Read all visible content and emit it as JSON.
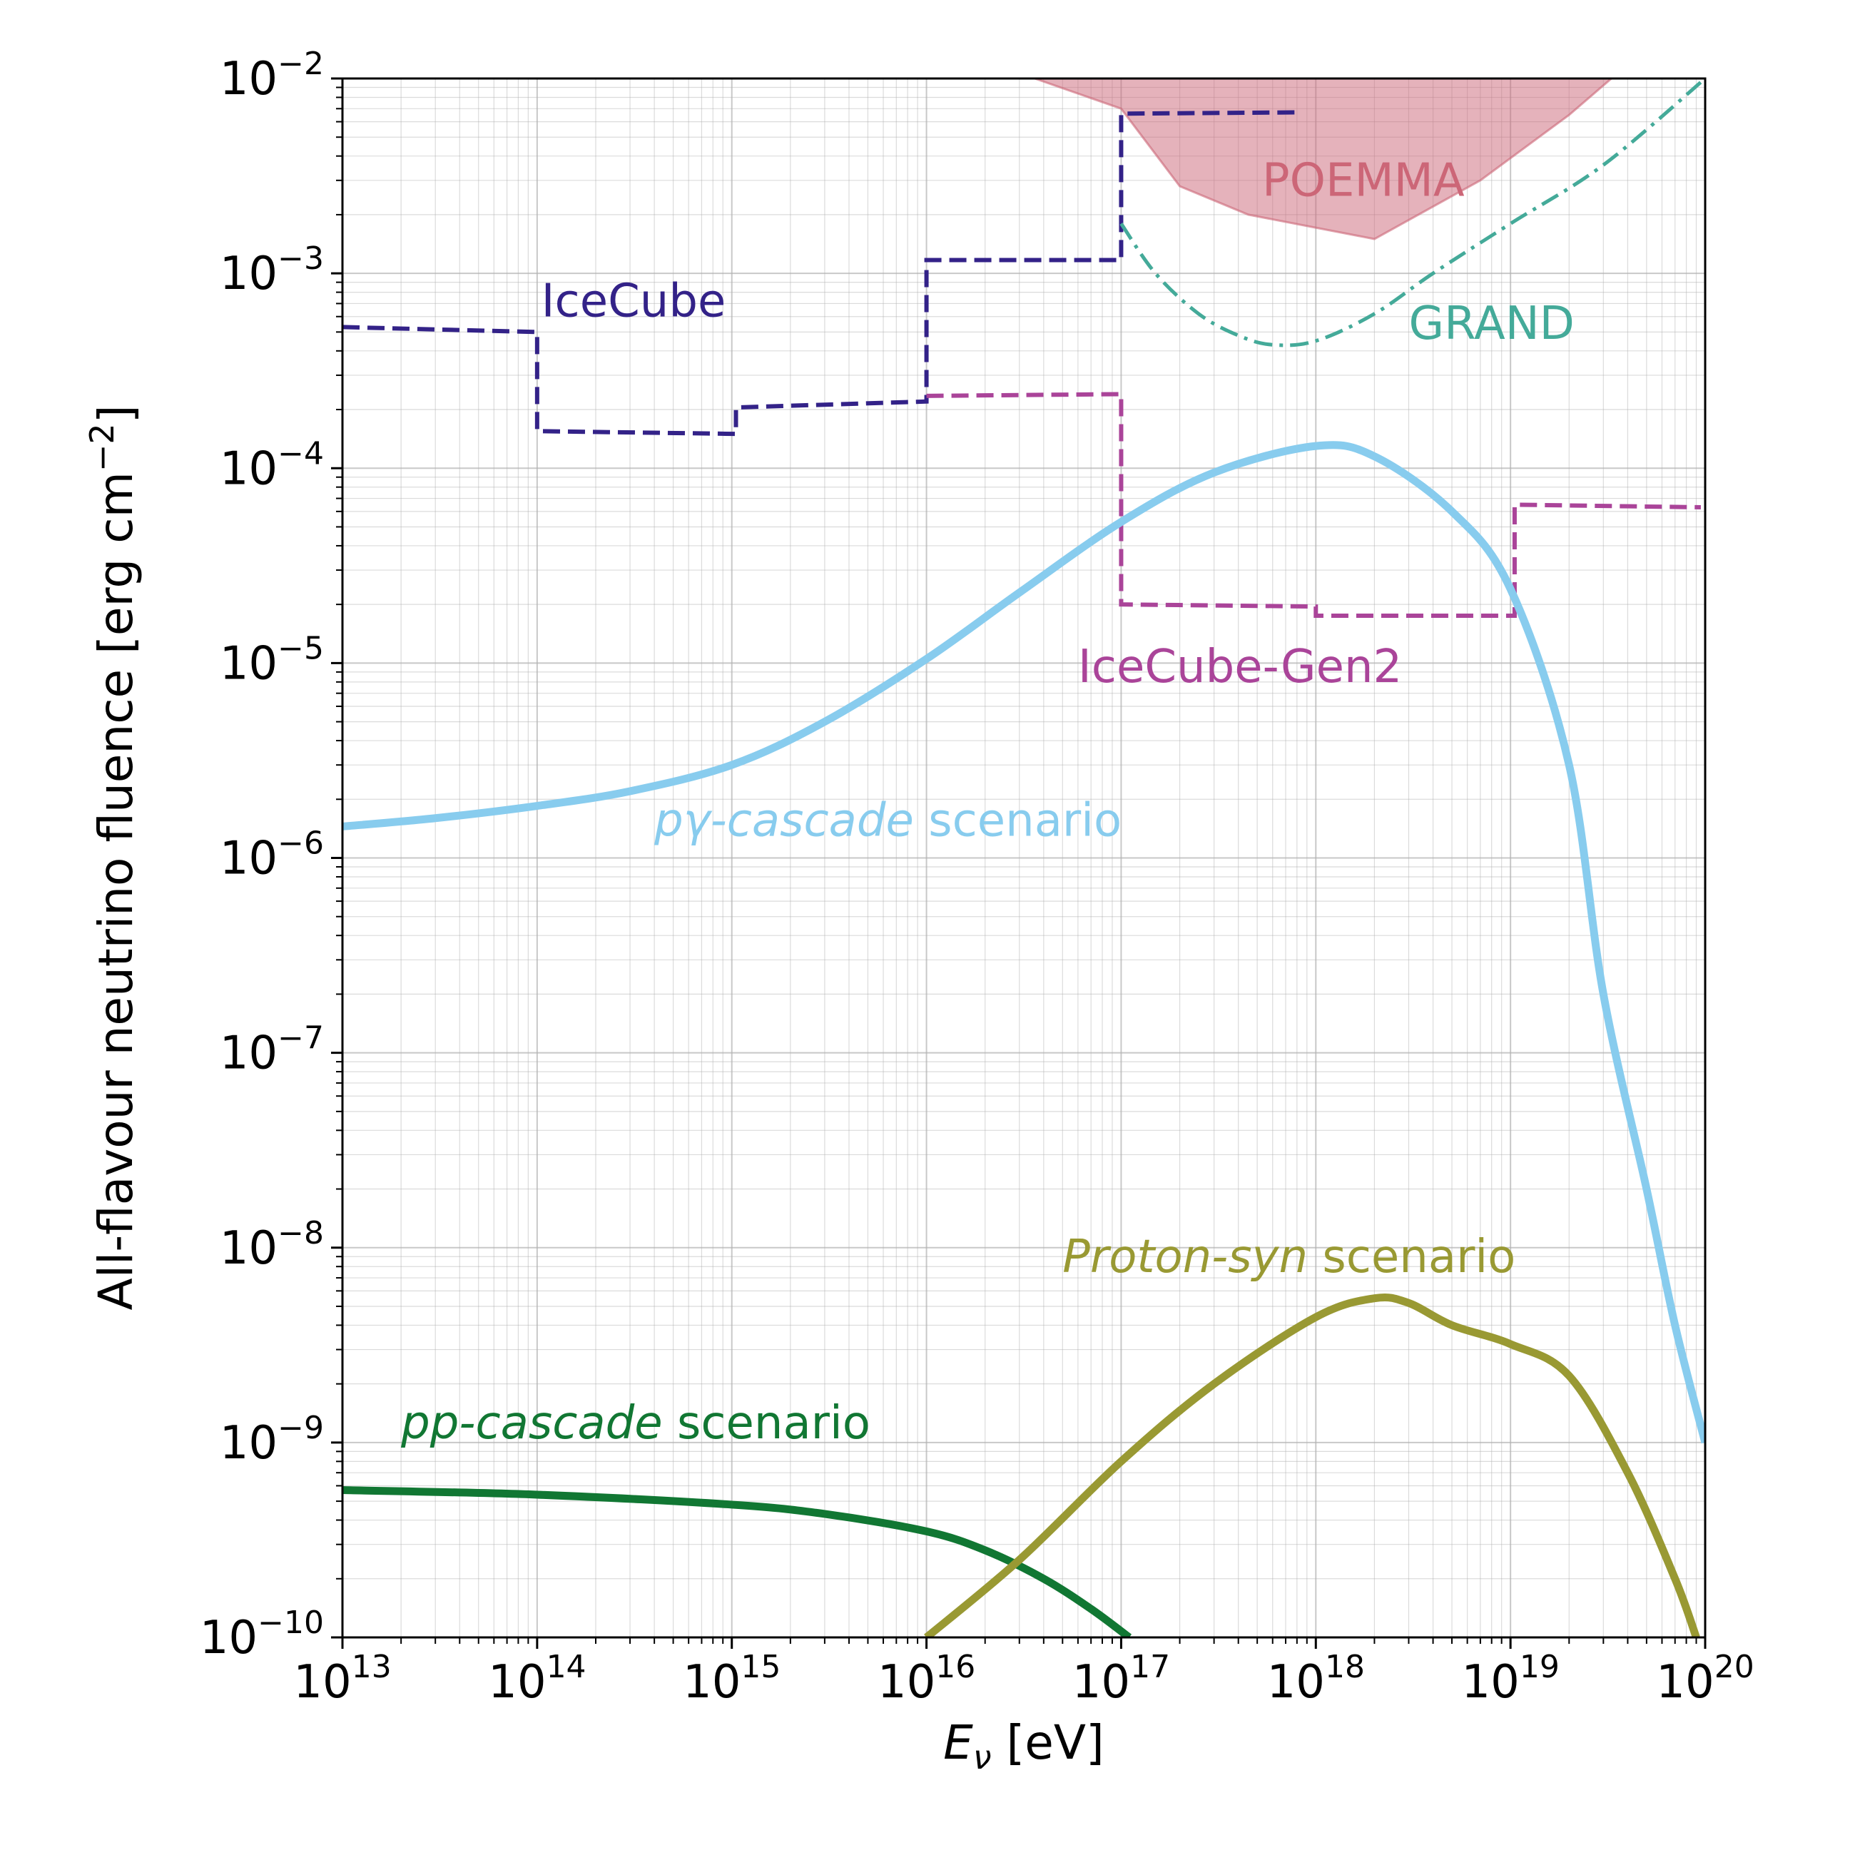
{
  "chart_data": {
    "type": "line",
    "xlabel": "Eν [eV]",
    "ylabel": "All-flavour neutrino fluence [erg cm⁻²]",
    "x_scale": "log",
    "y_scale": "log",
    "xlim": [
      10000000000000.0,
      1e+20
    ],
    "ylim": [
      1e-10,
      0.01
    ],
    "grid": true,
    "x_ticks": [
      {
        "value": 10000000000000.0,
        "base": "10",
        "exp": "13"
      },
      {
        "value": 100000000000000.0,
        "base": "10",
        "exp": "14"
      },
      {
        "value": 1000000000000000.0,
        "base": "10",
        "exp": "15"
      },
      {
        "value": 1e+16,
        "base": "10",
        "exp": "16"
      },
      {
        "value": 1e+17,
        "base": "10",
        "exp": "17"
      },
      {
        "value": 1e+18,
        "base": "10",
        "exp": "18"
      },
      {
        "value": 1e+19,
        "base": "10",
        "exp": "19"
      },
      {
        "value": 1e+20,
        "base": "10",
        "exp": "20"
      }
    ],
    "y_ticks": [
      {
        "value": 0.01,
        "base": "10",
        "exp": "−2"
      },
      {
        "value": 0.001,
        "base": "10",
        "exp": "−3"
      },
      {
        "value": 0.0001,
        "base": "10",
        "exp": "−4"
      },
      {
        "value": 1e-05,
        "base": "10",
        "exp": "−5"
      },
      {
        "value": 1e-06,
        "base": "10",
        "exp": "−6"
      },
      {
        "value": 1e-07,
        "base": "10",
        "exp": "−7"
      },
      {
        "value": 1e-08,
        "base": "10",
        "exp": "−8"
      },
      {
        "value": 1e-09,
        "base": "10",
        "exp": "−9"
      },
      {
        "value": 1e-10,
        "base": "10",
        "exp": "−10"
      }
    ],
    "series": [
      {
        "id": "poemma",
        "name": "POEMMA",
        "kind": "area",
        "color": "#cc6677",
        "label_italic": "",
        "label_rest": "POEMMA",
        "label_anchor": {
          "x": 5.3e+17,
          "y": 0.0025
        },
        "x": [
          3.6e+16,
          1e+17,
          2e+17,
          4.5e+17,
          2e+18,
          7e+18,
          2e+19,
          3.3e+19
        ],
        "y": [
          0.01,
          0.007,
          0.0028,
          0.002,
          0.0015,
          0.003,
          0.0065,
          0.01
        ]
      },
      {
        "id": "icecube",
        "name": "IceCube",
        "kind": "step",
        "color": "#332288",
        "label_italic": "",
        "label_rest": "IceCube",
        "label_anchor": {
          "x": 105000000000000.0,
          "y": 0.0006
        },
        "x": [
          10000000000000.0,
          100000000000000.0,
          100000000000000.0,
          1050000000000000.0,
          1050000000000000.0,
          1e+16,
          1e+16,
          1e+17,
          1e+17,
          8e+17
        ],
        "y": [
          0.00053,
          0.0005,
          0.000155,
          0.00015,
          0.000205,
          0.00022,
          0.00117,
          0.00117,
          0.0066,
          0.0067
        ]
      },
      {
        "id": "gen2",
        "name": "IceCube-Gen2",
        "kind": "step",
        "color": "#aa4499",
        "label_italic": "",
        "label_rest": "IceCube-Gen2",
        "label_anchor": {
          "x": 6e+16,
          "y": 8e-06
        },
        "x": [
          1e+16,
          1e+17,
          1e+17,
          1e+18,
          1e+18,
          1.05e+19,
          1.05e+19,
          9.5e+19
        ],
        "y": [
          0.000235,
          0.00024,
          2e-05,
          1.95e-05,
          1.75e-05,
          1.75e-05,
          6.5e-05,
          6.3e-05
        ]
      },
      {
        "id": "grand",
        "name": "GRAND",
        "kind": "dashdot",
        "color": "#44aa99",
        "label_italic": "",
        "label_rest": "GRAND",
        "label_anchor": {
          "x": 3e+18,
          "y": 0.00046
        },
        "x": [
          1e+17,
          1.5e+17,
          2.5e+17,
          4e+17,
          6e+17,
          1e+18,
          2e+18,
          4e+18,
          1e+19,
          3e+19,
          1e+20
        ],
        "y": [
          0.0018,
          0.001,
          0.00062,
          0.00048,
          0.00043,
          0.00045,
          0.00062,
          0.001,
          0.0018,
          0.0036,
          0.01
        ]
      },
      {
        "id": "pgamma",
        "name": "pγ-cascade scenario",
        "kind": "solid",
        "color": "#88ccee",
        "label_italic": "pγ-cascade",
        "label_rest": " scenario",
        "label_anchor": {
          "x": 400000000000000.0,
          "y": 1.3e-06
        },
        "x": [
          10000000000000.0,
          30000000000000.0,
          100000000000000.0,
          300000000000000.0,
          1000000000000000.0,
          3000000000000000.0,
          1e+16,
          3e+16,
          1e+17,
          3e+17,
          1e+18,
          2e+18,
          5e+18,
          1e+19,
          2e+19,
          3e+19,
          5e+19,
          7e+19,
          1e+20
        ],
        "y": [
          1.45e-06,
          1.6e-06,
          1.85e-06,
          2.2e-06,
          3e-06,
          5e-06,
          1.05e-05,
          2.3e-05,
          5.3e-05,
          9.5e-05,
          0.00013,
          0.000115,
          6e-05,
          2.4e-05,
          3e-06,
          2e-07,
          2e-08,
          4e-09,
          1e-09
        ]
      },
      {
        "id": "pp",
        "name": "pp-cascade scenario",
        "kind": "solid",
        "color": "#117733",
        "label_italic": "pp-cascade",
        "label_rest": " scenario",
        "label_anchor": {
          "x": 20000000000000.0,
          "y": 1.05e-09
        },
        "x": [
          10000000000000.0,
          100000000000000.0,
          1000000000000000.0,
          3000000000000000.0,
          1e+16,
          2e+16,
          4e+16,
          7e+16,
          1.1e+17
        ],
        "y": [
          5.7e-10,
          5.4e-10,
          4.8e-10,
          4.3e-10,
          3.5e-10,
          2.8e-10,
          2e-10,
          1.4e-10,
          1e-10
        ]
      },
      {
        "id": "protonsyn",
        "name": "Proton-syn scenario",
        "kind": "solid",
        "color": "#999933",
        "label_italic": "Proton-syn",
        "label_rest": " scenario",
        "label_anchor": {
          "x": 5e+16,
          "y": 7.5e-09
        },
        "x": [
          1e+16,
          3e+16,
          1e+17,
          3e+17,
          1e+18,
          2e+18,
          3e+18,
          5e+18,
          1e+19,
          2e+19,
          4e+19,
          7e+19,
          9e+19
        ],
        "y": [
          1e-10,
          2.5e-10,
          8e-10,
          2e-09,
          4.4e-09,
          5.5e-09,
          5.2e-09,
          4e-09,
          3.2e-09,
          2.2e-09,
          7e-10,
          2e-10,
          1e-10
        ]
      }
    ]
  },
  "axis_text": {
    "xlabel_symbol": "E",
    "xlabel_sub": "ν",
    "xlabel_rest": " [eV]",
    "ylabel_main": "All-flavour neutrino fluence [erg cm",
    "ylabel_exp": "−2",
    "ylabel_end": "]"
  }
}
